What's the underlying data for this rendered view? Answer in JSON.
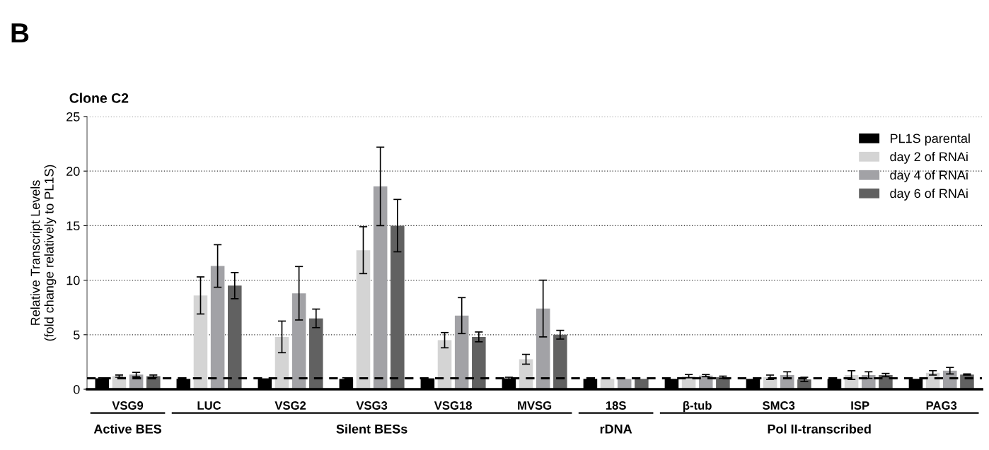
{
  "chart_data": {
    "type": "bar",
    "title": "Clone C2",
    "ylabel": "Relative Transcript Levels\n(fold change relatively to PL1S)",
    "categories": [
      "VSG9",
      "LUC",
      "VSG2",
      "VSG3",
      "VSG18",
      "MVSG",
      "18S",
      "β-tub",
      "SMC3",
      "ISP",
      "PAG3"
    ],
    "series": [
      {
        "name": "PL1S parental",
        "color": "#000000",
        "values": [
          1.0,
          0.95,
          1.0,
          0.95,
          1.0,
          1.0,
          0.95,
          0.95,
          0.95,
          0.95,
          0.95
        ],
        "errors": [
          0.05,
          null,
          null,
          0.1,
          null,
          0.1,
          null,
          null,
          null,
          null,
          null
        ]
      },
      {
        "name": "day 2 of RNAi",
        "color": "#d4d4d4",
        "values": [
          1.2,
          8.6,
          4.8,
          12.75,
          4.5,
          2.75,
          0.95,
          1.2,
          1.1,
          1.3,
          1.5
        ],
        "errors": [
          0.1,
          1.7,
          1.45,
          2.15,
          0.7,
          0.45,
          null,
          0.15,
          0.2,
          0.4,
          0.2
        ]
      },
      {
        "name": "day 4 of RNAi",
        "color": "#a2a2a6",
        "values": [
          1.35,
          11.3,
          8.8,
          18.6,
          6.75,
          7.4,
          0.95,
          1.25,
          1.3,
          1.3,
          1.7
        ],
        "errors": [
          0.2,
          1.95,
          2.45,
          3.6,
          1.65,
          2.6,
          null,
          0.1,
          0.3,
          0.3,
          0.3
        ]
      },
      {
        "name": "day 6 of RNAi",
        "color": "#616161",
        "values": [
          1.2,
          9.5,
          6.5,
          15.0,
          4.8,
          5.0,
          0.95,
          1.1,
          0.9,
          1.3,
          1.35
        ],
        "errors": [
          0.1,
          1.2,
          0.85,
          2.4,
          0.45,
          0.4,
          null,
          0.1,
          0.2,
          0.15,
          0.05
        ]
      }
    ],
    "ylim": [
      0,
      25
    ],
    "yticks": [
      0,
      5,
      10,
      15,
      20,
      25
    ],
    "grid": "y",
    "legend": "top right",
    "ref_lines": [
      {
        "axis": "y",
        "value": 1,
        "color": "#000000",
        "line_style": "dashed"
      }
    ],
    "annotations": [
      "B",
      "Active BES",
      "Silent BESs",
      "rDNA",
      "Pol II-transcribed"
    ]
  }
}
